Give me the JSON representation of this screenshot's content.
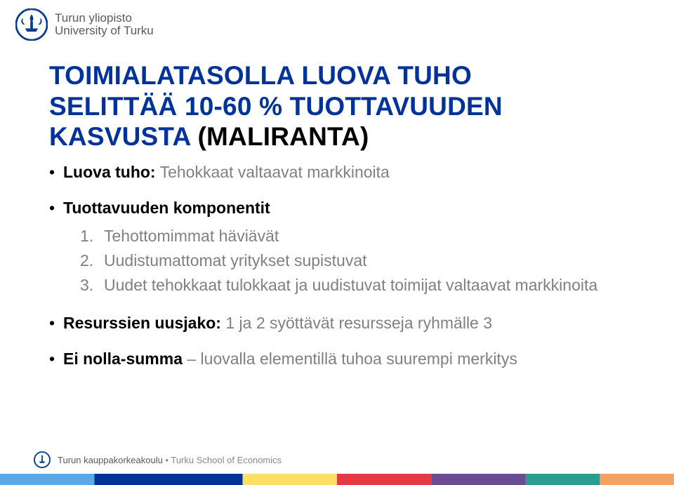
{
  "header": {
    "uni_top": "Turun yliopisto",
    "uni_bottom": "University of Turku"
  },
  "title": {
    "line1": "TOIMIALATASOLLA LUOVA TUHO",
    "line2_black": "SELITTÄÄ 10-60 % TUOTTAVUUDEN",
    "line3_blue_pre": "KASVUSTA ",
    "line3_black_paren": "(MALIRANTA)"
  },
  "bullets": {
    "b1_label": "Luova tuho:",
    "b1_rest": " Tehokkaat valtaavat markkinoita",
    "b2": "Tuottavuuden komponentit",
    "num": [
      "Tehottomimmat häviävät",
      "Uudistumattomat yritykset supistuvat",
      "Uudet tehokkaat tulokkaat ja uudistuvat toimijat valtaavat markkinoita"
    ],
    "b3_label": "Resurssien uusjako:",
    "b3_rest": " 1 ja 2 syöttävät resursseja ryhmälle 3",
    "b4_label": "Ei nolla-summa",
    "b4_rest": " – luovalla elementillä tuhoa suurempi merkitys"
  },
  "footer": {
    "bold": "Turun kauppakorkeakoulu",
    "sep": " • ",
    "light": "Turku School of Economics"
  },
  "colors": {
    "brand_blue": "#003399",
    "bar": [
      {
        "c": "#5aa9e6",
        "w": 14
      },
      {
        "c": "#003399",
        "w": 22
      },
      {
        "c": "#ffe066",
        "w": 14
      },
      {
        "c": "#e63946",
        "w": 14
      },
      {
        "c": "#6a4c93",
        "w": 14
      },
      {
        "c": "#2a9d8f",
        "w": 11
      },
      {
        "c": "#f4a261",
        "w": 11
      }
    ]
  }
}
